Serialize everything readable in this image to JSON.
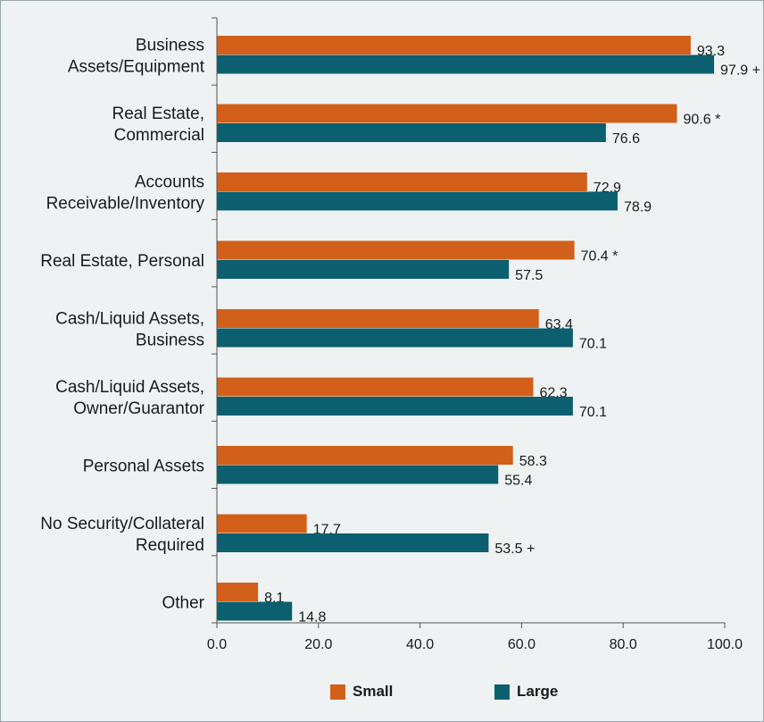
{
  "chart_data": {
    "type": "bar",
    "orientation": "horizontal",
    "categories": [
      [
        "Business",
        "Assets/Equipment"
      ],
      [
        "Real Estate,",
        "Commercial"
      ],
      [
        "Accounts",
        "Receivable/Inventory"
      ],
      [
        "Real Estate, Personal"
      ],
      [
        "Cash/Liquid Assets,",
        "Business"
      ],
      [
        "Cash/Liquid Assets,",
        "Owner/Guarantor"
      ],
      [
        "Personal Assets"
      ],
      [
        "No Security/Collateral",
        "Required"
      ],
      [
        "Other"
      ]
    ],
    "series": [
      {
        "name": "Small",
        "color": "#d2601a",
        "values": [
          93.3,
          90.6,
          72.9,
          70.4,
          63.4,
          62.3,
          58.3,
          17.7,
          8.1
        ],
        "labels": [
          "93.3",
          "90.6 *",
          "72.9",
          "70.4 *",
          "63.4",
          "62.3",
          "58.3",
          "17.7",
          "8.1"
        ]
      },
      {
        "name": "Large",
        "color": "#0b5f6e",
        "values": [
          97.9,
          76.6,
          78.9,
          57.5,
          70.1,
          70.1,
          55.4,
          53.5,
          14.8
        ],
        "labels": [
          "97.9 +",
          "76.6",
          "78.9",
          "57.5",
          "70.1",
          "70.1",
          "55.4",
          "53.5 +",
          "14.8"
        ]
      }
    ],
    "xlim": [
      0,
      100
    ],
    "xticks": [
      "0.0",
      "20.0",
      "40.0",
      "60.0",
      "80.0",
      "100.0"
    ],
    "grid": false,
    "legend_position": "bottom"
  }
}
